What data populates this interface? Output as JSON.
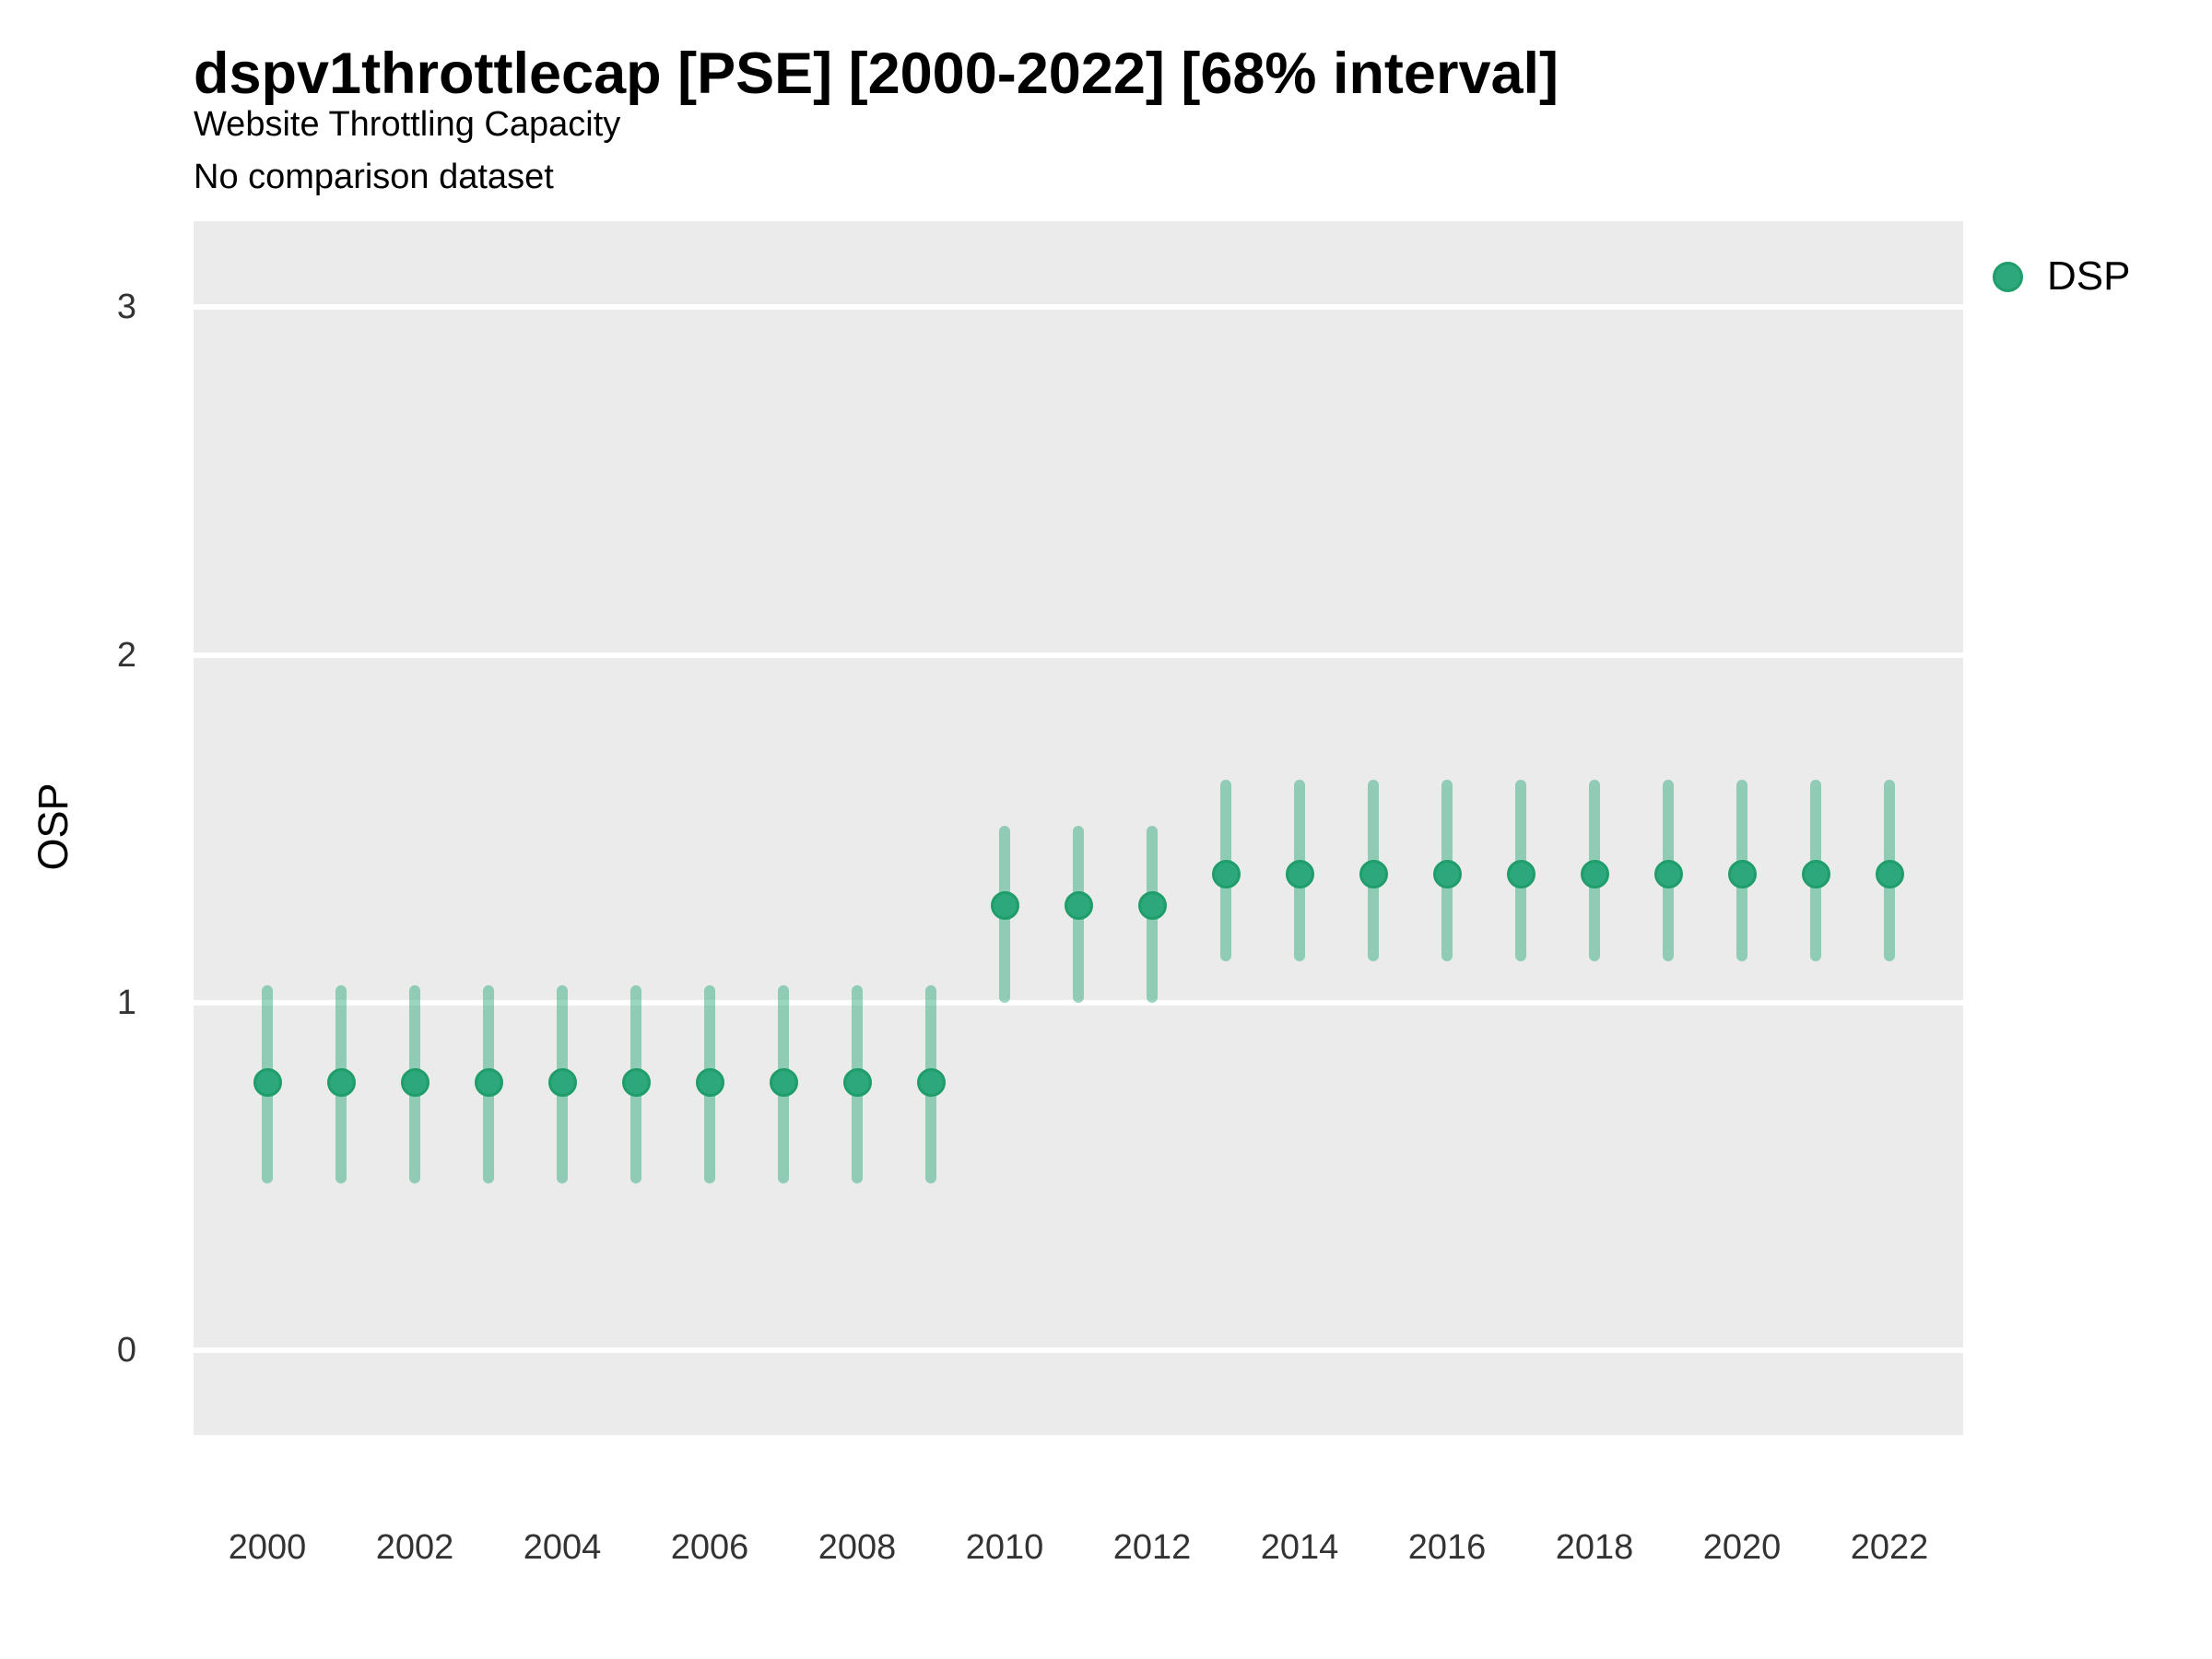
{
  "chart_data": {
    "type": "pointrange",
    "title": "dspv1throttlecap [PSE] [2000-2022] [68% interval]",
    "subtitle": "Website Throttling Capacity",
    "note": "No comparison dataset",
    "xlabel": "",
    "ylabel": "OSP",
    "interval_label": "68% interval",
    "ylim": [
      -0.24,
      3.25
    ],
    "yticks": [
      0,
      1,
      2,
      3
    ],
    "xticks": [
      2000,
      2002,
      2004,
      2006,
      2008,
      2010,
      2012,
      2014,
      2016,
      2018,
      2020,
      2022
    ],
    "grid": "horizontal major gridlines only",
    "legend_position": "right",
    "colors": {
      "panel_bg": "#EBEBEB",
      "gridline": "#FFFFFF",
      "point_fill": "#2CA87C",
      "point_stroke": "#1F9D6B",
      "interval": "rgba(44,168,122,0.48)"
    },
    "series": [
      {
        "name": "DSP",
        "x": [
          2000,
          2001,
          2002,
          2003,
          2004,
          2005,
          2006,
          2007,
          2008,
          2009,
          2010,
          2011,
          2012,
          2013,
          2014,
          2015,
          2016,
          2017,
          2018,
          2019,
          2020,
          2021,
          2022
        ],
        "y": [
          0.77,
          0.77,
          0.77,
          0.77,
          0.77,
          0.77,
          0.77,
          0.77,
          0.77,
          0.77,
          1.28,
          1.28,
          1.28,
          1.37,
          1.37,
          1.37,
          1.37,
          1.37,
          1.37,
          1.37,
          1.37,
          1.37,
          1.37
        ],
        "y_lo": [
          0.48,
          0.48,
          0.48,
          0.48,
          0.48,
          0.48,
          0.48,
          0.48,
          0.48,
          0.48,
          1.0,
          1.0,
          1.0,
          1.12,
          1.12,
          1.12,
          1.12,
          1.12,
          1.12,
          1.12,
          1.12,
          1.12,
          1.12
        ],
        "y_hi": [
          1.05,
          1.05,
          1.05,
          1.05,
          1.05,
          1.05,
          1.05,
          1.05,
          1.05,
          1.05,
          1.51,
          1.51,
          1.51,
          1.64,
          1.64,
          1.64,
          1.64,
          1.64,
          1.64,
          1.64,
          1.64,
          1.64,
          1.64
        ]
      }
    ]
  }
}
